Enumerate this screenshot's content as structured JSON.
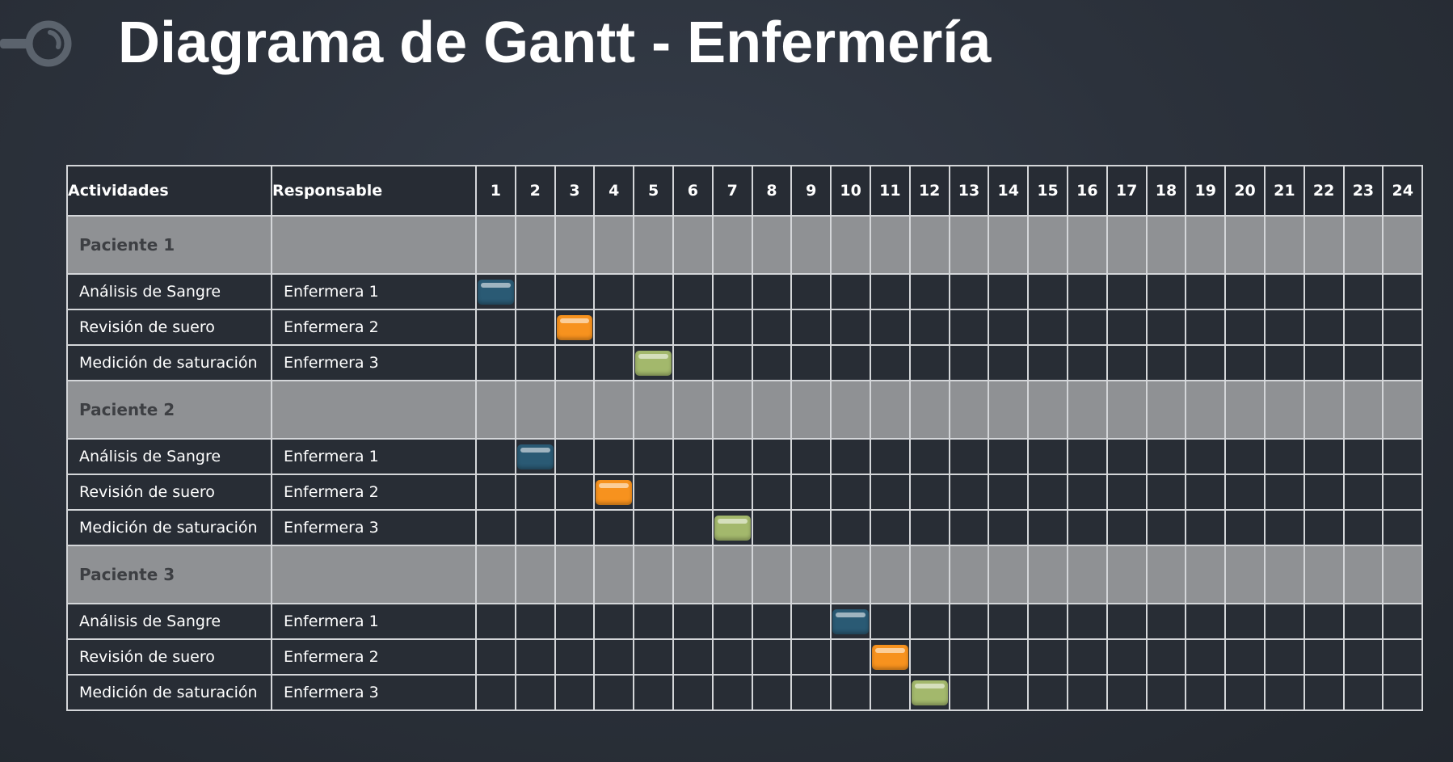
{
  "page": {
    "title": "Diagrama de Gantt - Enfermería"
  },
  "logo": {
    "icon": "ring-logo-icon",
    "color": "#5b636d"
  },
  "chart_data": {
    "type": "gantt",
    "columns": {
      "activity": "Actividades",
      "responsible": "Responsable"
    },
    "time_slots": [
      "1",
      "2",
      "3",
      "4",
      "5",
      "6",
      "7",
      "8",
      "9",
      "10",
      "11",
      "12",
      "13",
      "14",
      "15",
      "16",
      "17",
      "18",
      "19",
      "20",
      "21",
      "22",
      "23",
      "24"
    ],
    "colors": {
      "Enfermera 1": "#2a5a74",
      "Enfermera 2": "#f7921e",
      "Enfermera 3": "#a3b86c"
    },
    "groups": [
      {
        "name": "Paciente 1",
        "tasks": [
          {
            "activity": "Análisis de Sangre",
            "responsible": "Enfermera 1",
            "start": 1,
            "end": 1
          },
          {
            "activity": "Revisión de suero",
            "responsible": "Enfermera 2",
            "start": 3,
            "end": 3
          },
          {
            "activity": "Medición de saturación",
            "responsible": "Enfermera 3",
            "start": 5,
            "end": 5
          }
        ]
      },
      {
        "name": "Paciente 2",
        "tasks": [
          {
            "activity": "Análisis de Sangre",
            "responsible": "Enfermera 1",
            "start": 2,
            "end": 2
          },
          {
            "activity": "Revisión de suero",
            "responsible": "Enfermera 2",
            "start": 4,
            "end": 4
          },
          {
            "activity": "Medición de saturación",
            "responsible": "Enfermera 3",
            "start": 7,
            "end": 7
          }
        ]
      },
      {
        "name": "Paciente 3",
        "tasks": [
          {
            "activity": "Análisis de Sangre",
            "responsible": "Enfermera 1",
            "start": 10,
            "end": 10
          },
          {
            "activity": "Revisión de suero",
            "responsible": "Enfermera 2",
            "start": 11,
            "end": 11
          },
          {
            "activity": "Medición de saturación",
            "responsible": "Enfermera 3",
            "start": 12,
            "end": 12
          }
        ]
      }
    ]
  }
}
